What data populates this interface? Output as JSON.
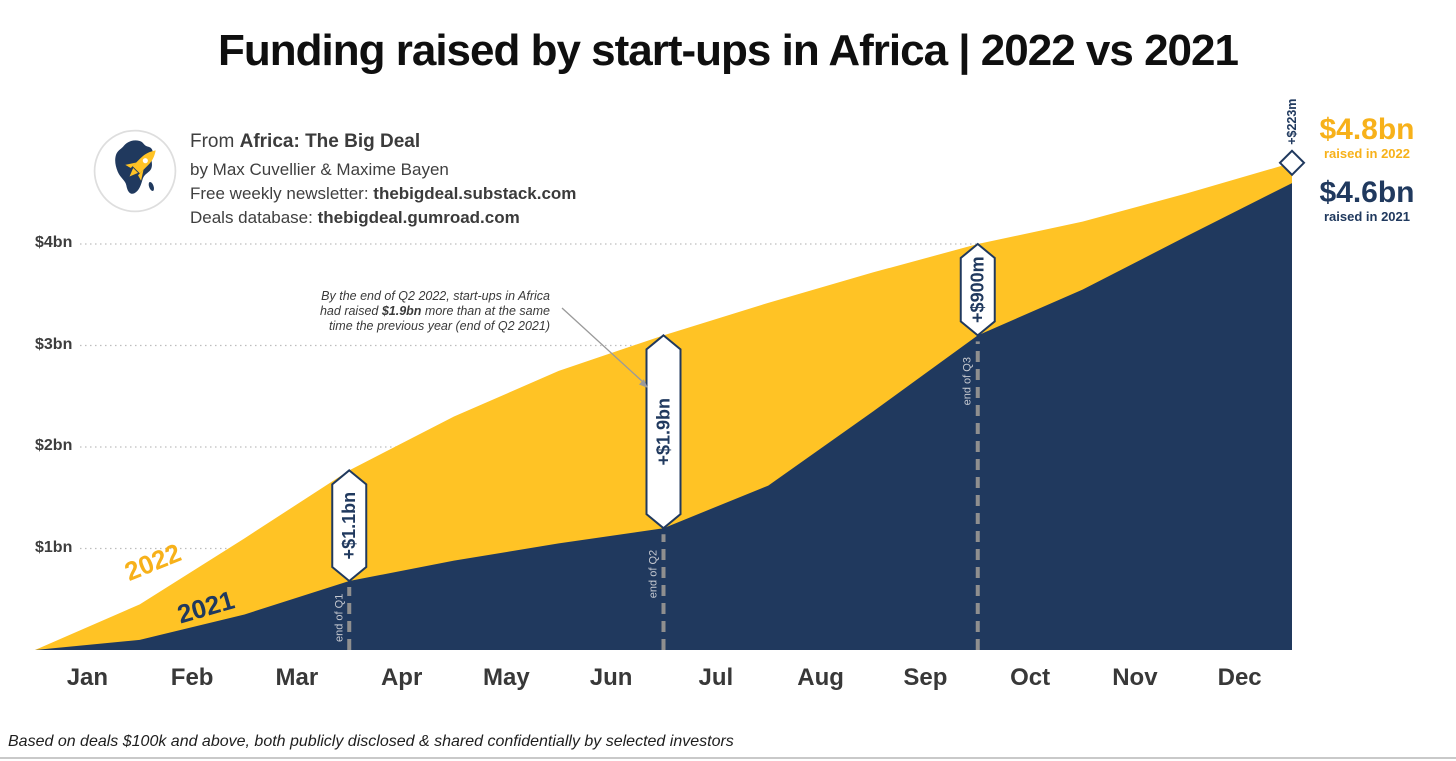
{
  "title": "Funding raised by start-ups in Africa | 2022 vs 2021",
  "attribution": {
    "from_prefix": "From ",
    "source_name": "Africa: The Big Deal",
    "authors": "by Max Cuvellier & Maxime Bayen",
    "newsletter_label": "Free weekly newsletter: ",
    "newsletter_url": "thebigdeal.substack.com",
    "database_label": "Deals database: ",
    "database_url": "thebigdeal.gumroad.com"
  },
  "summary": {
    "total_2022": "$4.8bn",
    "total_2022_caption": "raised in 2022",
    "total_2021": "$4.6bn",
    "total_2021_caption": "raised in 2021"
  },
  "annotation": {
    "line1": "By the end of Q2 2022, start-ups in Africa",
    "line2_pre": "had raised ",
    "line2_bold": "$1.9bn",
    "line2_post": " more than at the same",
    "line3": "time the previous year (end of Q2 2021)"
  },
  "footer": "Based on deals $100k and above, both publicly disclosed & shared confidentially by selected investors",
  "colors": {
    "gold": "#FFC325",
    "gold_text": "#F7B11A",
    "navy": "#20395E",
    "grid": "#bdbdbd",
    "dash": "#8f8f8f",
    "quarter_label": "#c6c9d0",
    "arrow": "#9a9a9a"
  },
  "chart_data": {
    "type": "area",
    "title": "Funding raised by start-ups in Africa | 2022 vs 2021",
    "x_months": [
      "Jan",
      "Feb",
      "Mar",
      "Apr",
      "May",
      "Jun",
      "Jul",
      "Aug",
      "Sep",
      "Oct",
      "Nov",
      "Dec"
    ],
    "y_ticks": [
      {
        "value": 1,
        "label": "$1bn"
      },
      {
        "value": 2,
        "label": "$2bn"
      },
      {
        "value": 3,
        "label": "$3bn"
      },
      {
        "value": 4,
        "label": "$4bn"
      }
    ],
    "ylim": [
      0,
      5
    ],
    "grid": "dotted horizontal",
    "legend_position": "on-chart rotated labels",
    "series": [
      {
        "name": "2022",
        "color": "#FFC325",
        "cumulative_bn": [
          0.45,
          1.1,
          1.77,
          2.3,
          2.75,
          3.1,
          3.42,
          3.72,
          4.0,
          4.22,
          4.5,
          4.8
        ],
        "total_label": "$4.8bn"
      },
      {
        "name": "2021",
        "color": "#20395E",
        "cumulative_bn": [
          0.1,
          0.35,
          0.68,
          0.88,
          1.05,
          1.2,
          1.62,
          2.35,
          3.1,
          3.55,
          4.08,
          4.6
        ],
        "total_label": "$4.6bn"
      }
    ],
    "markers": [
      {
        "label": "+$1.1bn",
        "month_index": 2,
        "axis_label": "end of Q1",
        "style": "badge"
      },
      {
        "label": "+$1.9bn",
        "month_index": 5,
        "axis_label": "end of Q2",
        "style": "badge"
      },
      {
        "label": "+$900m",
        "month_index": 8,
        "axis_label": "end of Q3",
        "style": "badge"
      },
      {
        "label": "+$223m",
        "month_index": 11,
        "style": "diamond"
      }
    ]
  }
}
